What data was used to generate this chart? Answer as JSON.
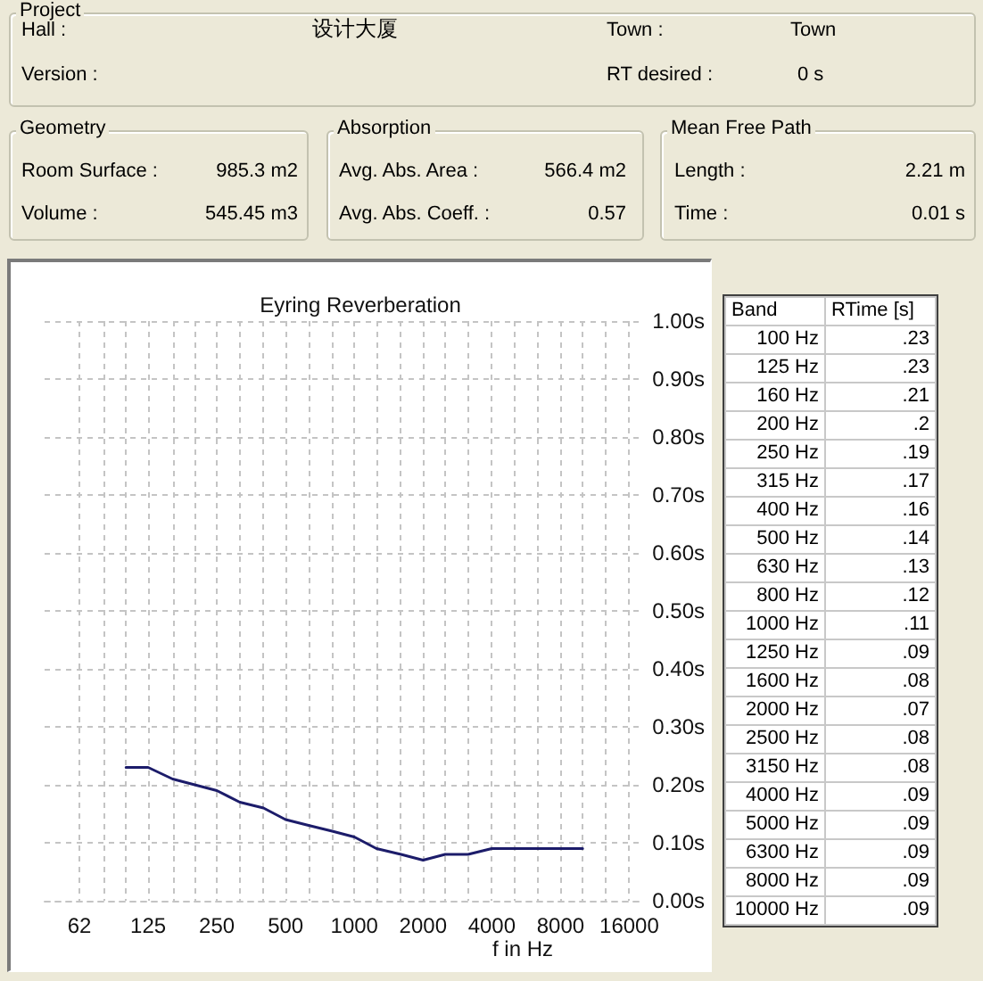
{
  "chart_data": [
    {
      "type": "other",
      "title": "Project",
      "annotations": [
        "Hall :",
        "设计大厦",
        "Town :",
        "Town",
        "Version :",
        "RT desired :",
        "0 s"
      ]
    },
    {
      "type": "other",
      "title": "Geometry",
      "annotations": [
        "Room Surface :",
        "985.3 m2",
        "Volume :",
        "545.45 m3"
      ]
    },
    {
      "type": "other",
      "title": "Absorption",
      "annotations": [
        "Avg. Abs. Area :",
        "566.4 m2",
        "Avg. Abs. Coeff. :",
        "0.57"
      ]
    },
    {
      "type": "other",
      "title": "Mean Free Path",
      "annotations": [
        "Length :",
        "2.21 m",
        "Time :",
        "0.01 s"
      ]
    },
    {
      "type": "line",
      "title": "Eyring Reverberation",
      "xlabel": "f in Hz",
      "x": [
        100,
        125,
        160,
        200,
        250,
        315,
        400,
        500,
        630,
        800,
        1000,
        1250,
        1600,
        2000,
        2500,
        3150,
        4000,
        5000,
        6300,
        8000,
        10000
      ],
      "values": [
        0.23,
        0.23,
        0.21,
        0.2,
        0.19,
        0.17,
        0.16,
        0.14,
        0.13,
        0.12,
        0.11,
        0.09,
        0.08,
        0.07,
        0.08,
        0.08,
        0.09,
        0.09,
        0.09,
        0.09,
        0.09
      ],
      "color": "#1c1c6a",
      "xlim": [
        44,
        17800
      ],
      "xticks": [
        {
          "value": 62.5,
          "label": "62"
        },
        {
          "value": 80,
          "label": null
        },
        {
          "value": 100,
          "label": null
        },
        125,
        {
          "value": 160,
          "label": null
        },
        {
          "value": 200,
          "label": null
        },
        250,
        {
          "value": 315,
          "label": null
        },
        {
          "value": 400,
          "label": null
        },
        500,
        {
          "value": 630,
          "label": null
        },
        {
          "value": 800,
          "label": null
        },
        1000,
        {
          "value": 1250,
          "label": null
        },
        {
          "value": 1600,
          "label": null
        },
        2000,
        {
          "value": 2500,
          "label": null
        },
        {
          "value": 3150,
          "label": null
        },
        4000,
        {
          "value": 5000,
          "label": null
        },
        {
          "value": 6300,
          "label": null
        },
        8000,
        {
          "value": 10000,
          "label": null
        },
        {
          "value": 12500,
          "label": null
        },
        16000
      ],
      "ylim": [
        0,
        1
      ],
      "yticks": [
        {
          "value": 0,
          "label": "0.00s"
        },
        {
          "value": 0.1,
          "label": "0.10s"
        },
        {
          "value": 0.2,
          "label": "0.20s"
        },
        {
          "value": 0.3,
          "label": "0.30s"
        },
        {
          "value": 0.4,
          "label": "0.40s"
        },
        {
          "value": 0.5,
          "label": "0.50s"
        },
        {
          "value": 0.6,
          "label": "0.60s"
        },
        {
          "value": 0.7,
          "label": "0.70s"
        },
        {
          "value": 0.8,
          "label": "0.80s"
        },
        {
          "value": 0.9,
          "label": "0.90s"
        },
        {
          "value": 1,
          "label": "1.00s"
        }
      ],
      "log": "x",
      "grid": true,
      "marker": "none"
    },
    {
      "type": "other",
      "annotations": [
        "Band",
        "RTime [s]"
      ],
      "categories": [
        "100 Hz",
        "125 Hz",
        "160 Hz",
        "200 Hz",
        "250 Hz",
        "315 Hz",
        "400 Hz",
        "500 Hz",
        "630 Hz",
        "800 Hz",
        "1000 Hz",
        "1250 Hz",
        "1600 Hz",
        "2000 Hz",
        "2500 Hz",
        "3150 Hz",
        "4000 Hz",
        "5000 Hz",
        "6300 Hz",
        "8000 Hz",
        "10000 Hz"
      ],
      "value_labels": [
        ".23",
        ".23",
        ".21",
        ".2",
        ".19",
        ".17",
        ".16",
        ".14",
        ".13",
        ".12",
        ".11",
        ".09",
        ".08",
        ".07",
        ".08",
        ".08",
        ".09",
        ".09",
        ".09",
        ".09",
        ".09"
      ]
    }
  ]
}
